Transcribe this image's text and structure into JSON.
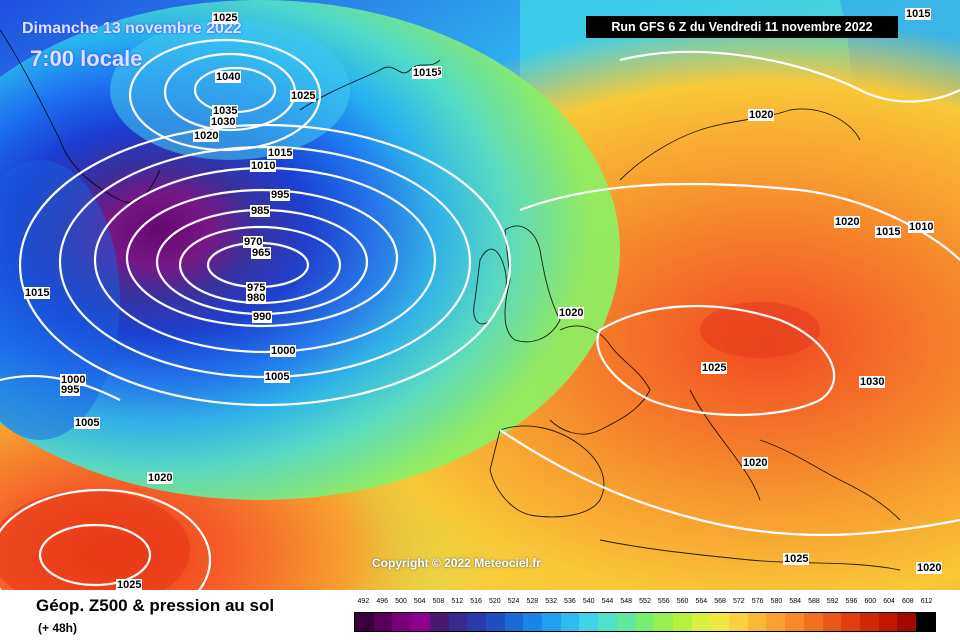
{
  "header": {
    "date_title": "Dimanche 13 novembre 2022",
    "time_title": "7:00 locale",
    "run_info": "Run GFS 6 Z du Vendredi 11 novembre 2022"
  },
  "copyright": "Copyright © 2022 Meteociel.fr",
  "pressure_labels": [
    "1025",
    "1015",
    "1040",
    "1035",
    "1030",
    "1025",
    "1020",
    "1015",
    "1010",
    "995",
    "985",
    "970",
    "965",
    "975",
    "980",
    "990",
    "1000",
    "1005",
    "1015",
    "1000",
    "995",
    "1005",
    "1020",
    "1025",
    "1020",
    "1020",
    "1015",
    "1020",
    "1015",
    "1010",
    "1025",
    "1030",
    "1020",
    "1025",
    "1020",
    "1015"
  ],
  "footer": {
    "title": "Géop. Z500 & pression au sol",
    "subtitle": "(+ 48h)"
  },
  "legend": {
    "ticks": [
      "492",
      "496",
      "500",
      "504",
      "508",
      "512",
      "516",
      "520",
      "524",
      "528",
      "532",
      "536",
      "540",
      "544",
      "548",
      "552",
      "556",
      "560",
      "564",
      "568",
      "572",
      "576",
      "580",
      "584",
      "588",
      "592",
      "596",
      "600",
      "604",
      "608",
      "612"
    ],
    "colors": [
      "#3a003a",
      "#5a005a",
      "#7a007a",
      "#8e008e",
      "#4a1a70",
      "#3a2a90",
      "#2a3aa8",
      "#2050c0",
      "#1a6ad8",
      "#1a84e8",
      "#20a0f0",
      "#30bcf0",
      "#40d2e8",
      "#50e0c8",
      "#60e8a0",
      "#78ee70",
      "#98f050",
      "#b8f040",
      "#d8f040",
      "#f0e840",
      "#f8d040",
      "#f8b838",
      "#f8a030",
      "#f88828",
      "#f07020",
      "#e85818",
      "#e04010",
      "#d02808",
      "#c01800",
      "#a00800",
      "#000000"
    ]
  },
  "colors": {
    "low_center": "#6a006a",
    "high_center": "#f04020",
    "run_box_bg": "#000000"
  }
}
